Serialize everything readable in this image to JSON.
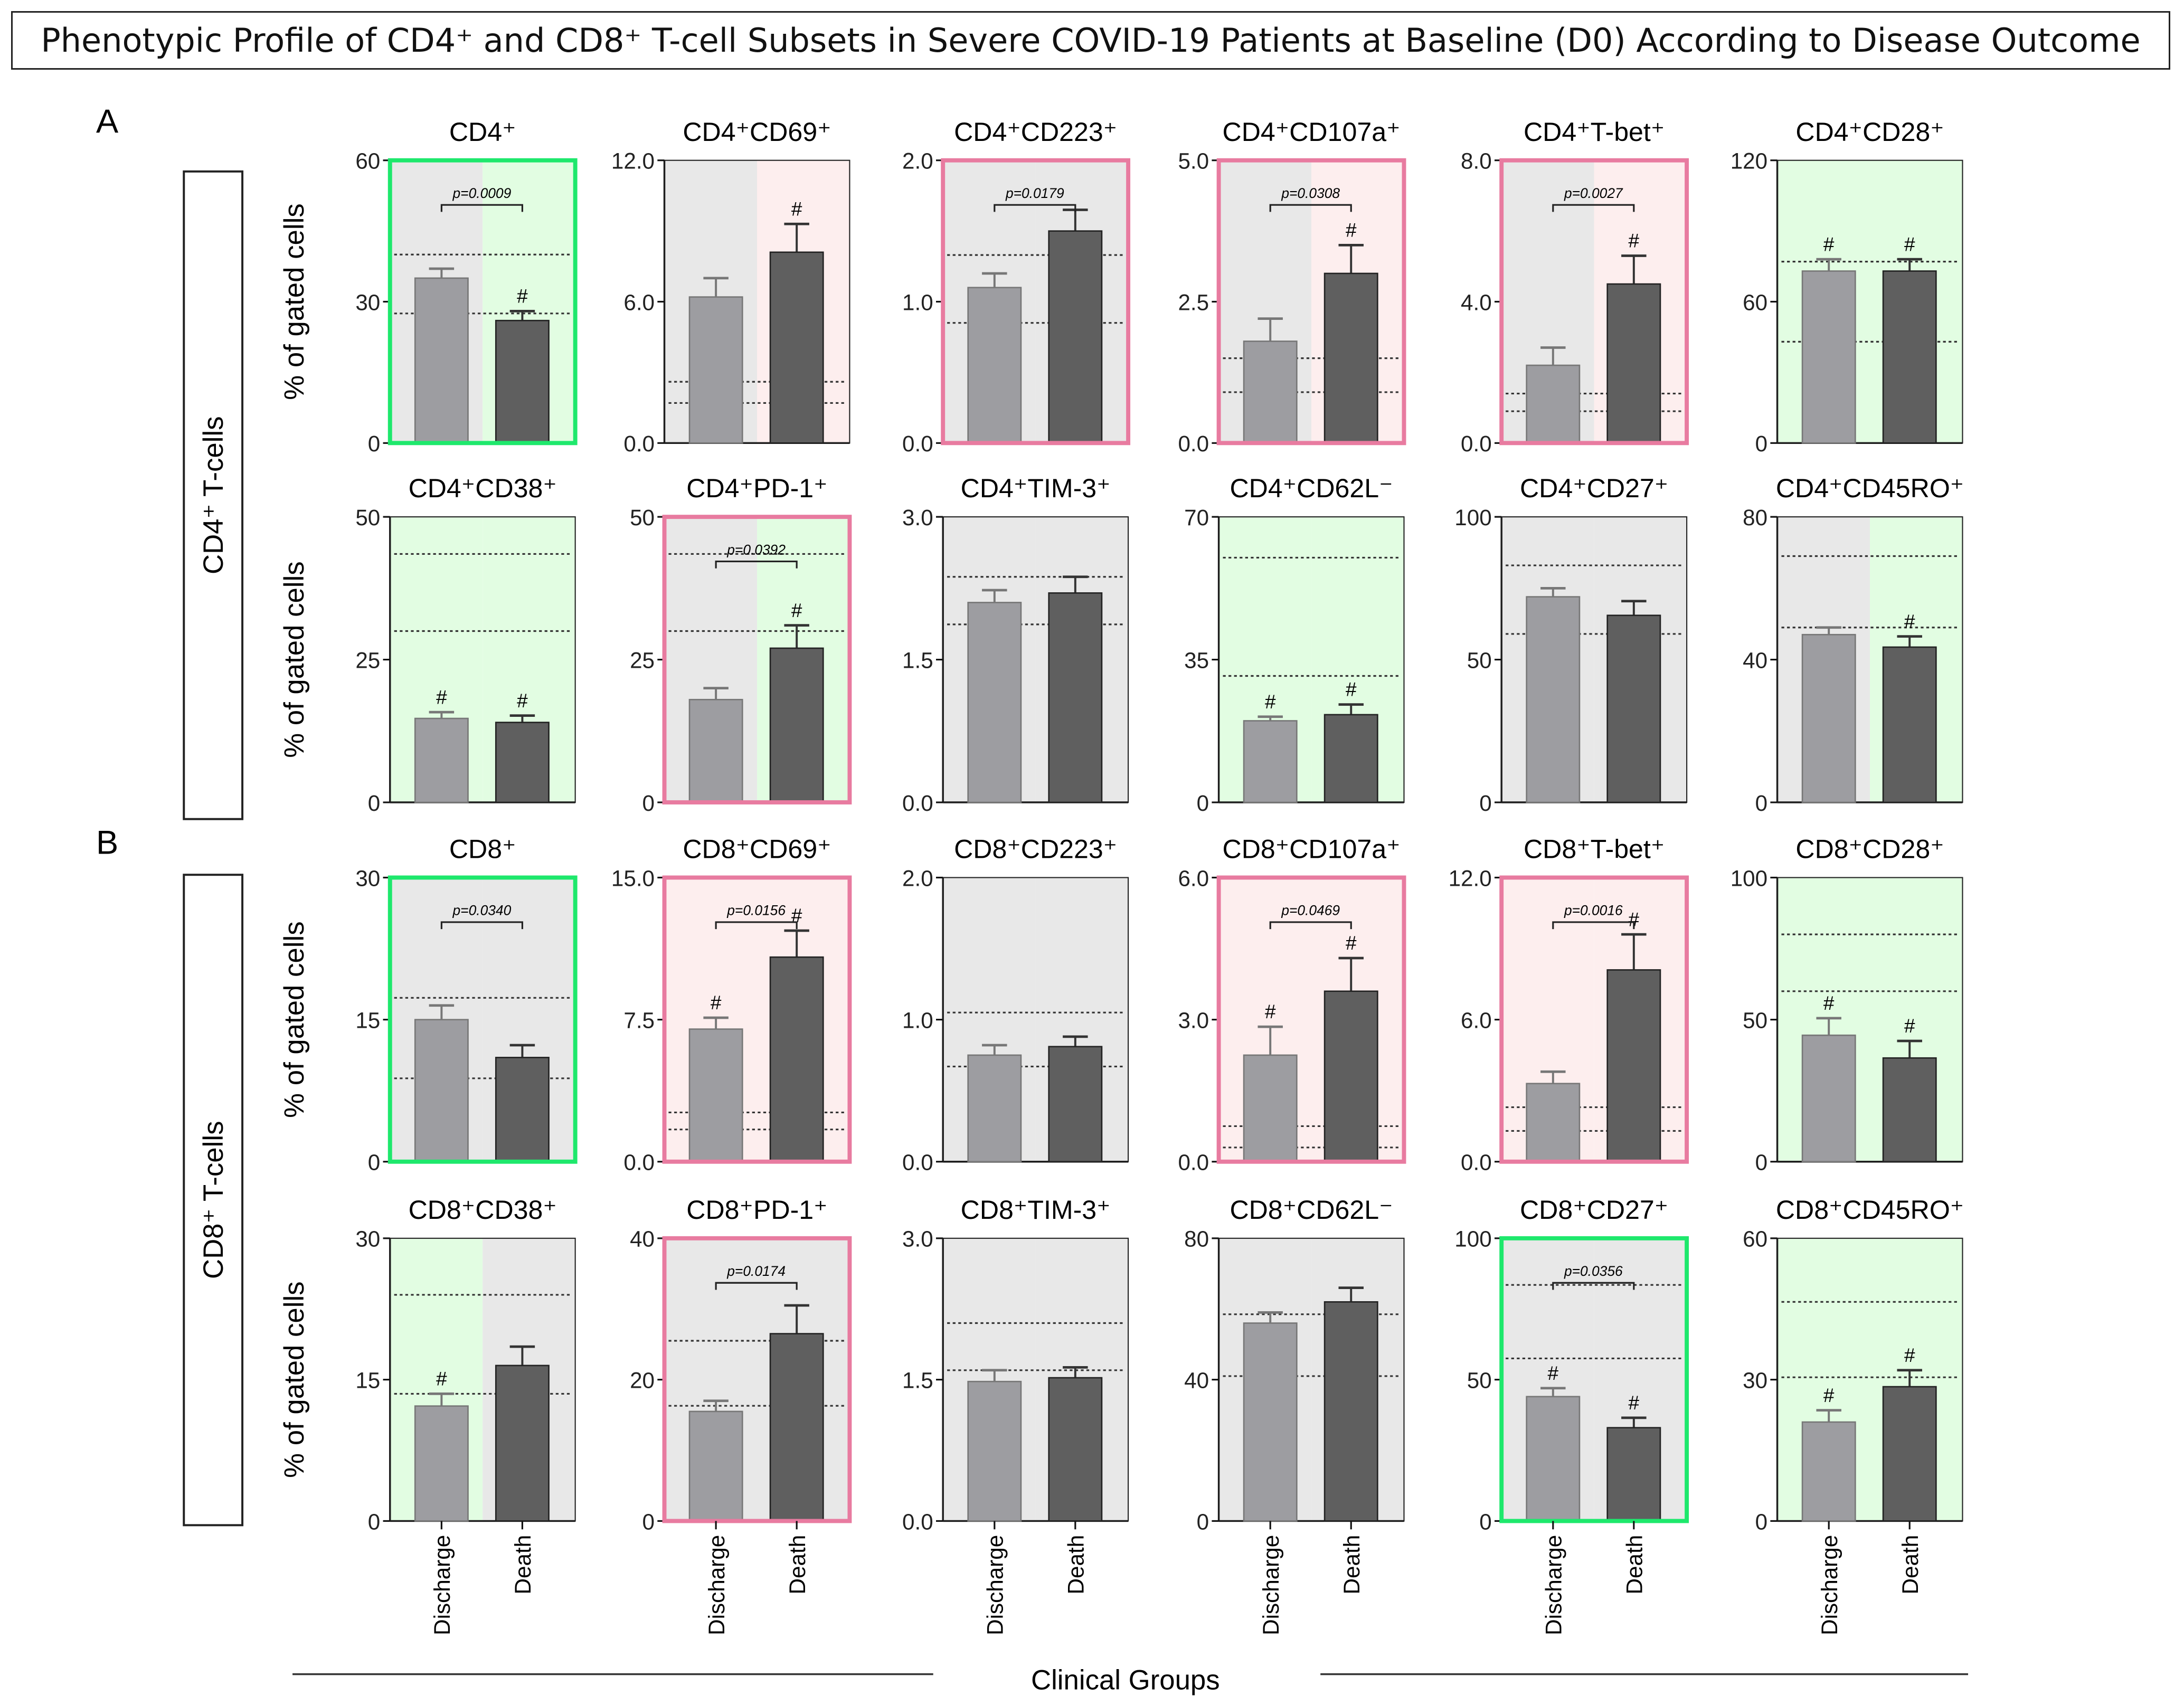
{
  "figure_title": "Phenotypic Profile of CD4⁺ and CD8⁺ T-cell Subsets in Severe COVID-19 Patients at Baseline (D0) According to Disease Outcome",
  "section_labels": [
    "A",
    "B"
  ],
  "row_group_labels": [
    "CD4⁺ T-cells",
    "CD8⁺ T-cells"
  ],
  "y_axis_label": "% of gated cells",
  "x_axis_title": "Clinical Groups",
  "colors": {
    "bg_grey": "#e8e8e8",
    "bg_green": "#e2fde2",
    "bg_pink": "#fdeeee",
    "bar_discharge": "#9d9da1",
    "bar_death": "#5f5f5f",
    "border_green": "#1ee86c",
    "border_pink": "#e87ba0"
  },
  "chart_data": {
    "type": "bar",
    "categories": [
      "Discharge",
      "Death"
    ],
    "panels": [
      {
        "title": "CD4⁺",
        "ymax": 60,
        "ticks": [
          "0",
          "30",
          "60"
        ],
        "values": [
          35,
          26
        ],
        "err": [
          37,
          28
        ],
        "ref": [
          40,
          27.5
        ],
        "bg": [
          "grey",
          "green"
        ],
        "border": "green",
        "p": "p=0.0009",
        "hash": [
          false,
          true
        ]
      },
      {
        "title": "CD4⁺CD69⁺",
        "ymax": 12,
        "ticks": [
          "0.0",
          "6.0",
          "12.0"
        ],
        "values": [
          6.2,
          8.1
        ],
        "err": [
          7.0,
          9.3
        ],
        "ref": [
          2.6,
          1.7
        ],
        "bg": [
          "grey",
          "pink"
        ],
        "border": null,
        "p": null,
        "hash": [
          false,
          true
        ]
      },
      {
        "title": "CD4⁺CD223⁺",
        "ymax": 2,
        "ticks": [
          "0.0",
          "1.0",
          "2.0"
        ],
        "values": [
          1.1,
          1.5
        ],
        "err": [
          1.2,
          1.65
        ],
        "ref": [
          1.33,
          0.85
        ],
        "bg": [
          "grey",
          "grey"
        ],
        "border": "pink",
        "p": "p=0.0179",
        "hash": [
          false,
          false
        ]
      },
      {
        "title": "CD4⁺CD107a⁺",
        "ymax": 5,
        "ticks": [
          "0.0",
          "2.5",
          "5.0"
        ],
        "values": [
          1.8,
          3.0
        ],
        "err": [
          2.2,
          3.5
        ],
        "ref": [
          1.5,
          0.9
        ],
        "bg": [
          "grey",
          "pink"
        ],
        "border": "pink",
        "p": "p=0.0308",
        "hash": [
          false,
          true
        ]
      },
      {
        "title": "CD4⁺T-bet⁺",
        "ymax": 8,
        "ticks": [
          "0.0",
          "4.0",
          "8.0"
        ],
        "values": [
          2.2,
          4.5
        ],
        "err": [
          2.7,
          5.3
        ],
        "ref": [
          1.4,
          0.9
        ],
        "bg": [
          "grey",
          "pink"
        ],
        "border": "pink",
        "p": "p=0.0027",
        "hash": [
          false,
          true
        ]
      },
      {
        "title": "CD4⁺CD28⁺",
        "ymax": 120,
        "ticks": [
          "0",
          "60",
          "120"
        ],
        "values": [
          73,
          73
        ],
        "err": [
          78,
          78
        ],
        "ref": [
          77,
          43
        ],
        "bg": [
          "green",
          "green"
        ],
        "border": null,
        "p": null,
        "hash": [
          true,
          true
        ]
      },
      {
        "title": "CD4⁺CD38⁺",
        "ymax": 50,
        "ticks": [
          "0",
          "25",
          "50"
        ],
        "values": [
          14.7,
          14
        ],
        "err": [
          15.8,
          15.2
        ],
        "ref": [
          43.5,
          30
        ],
        "bg": [
          "green",
          "green"
        ],
        "border": null,
        "p": null,
        "hash": [
          true,
          true
        ]
      },
      {
        "title": "CD4⁺PD-1⁺",
        "ymax": 50,
        "ticks": [
          "0",
          "25",
          "50"
        ],
        "values": [
          18,
          27
        ],
        "err": [
          20,
          31
        ],
        "ref": [
          43.5,
          30
        ],
        "bg": [
          "grey",
          "green"
        ],
        "border": "pink",
        "p": "p=0.0392",
        "hash": [
          false,
          true
        ]
      },
      {
        "title": "CD4⁺TIM-3⁺",
        "ymax": 3,
        "ticks": [
          "0.0",
          "1.5",
          "3.0"
        ],
        "values": [
          2.1,
          2.2
        ],
        "err": [
          2.23,
          2.37
        ],
        "ref": [
          2.37,
          1.87
        ],
        "bg": [
          "grey",
          "grey"
        ],
        "border": null,
        "p": null,
        "hash": [
          false,
          false
        ]
      },
      {
        "title": "CD4⁺CD62L⁻",
        "ymax": 70,
        "ticks": [
          "0",
          "35",
          "70"
        ],
        "values": [
          20,
          21.5
        ],
        "err": [
          21,
          24
        ],
        "ref": [
          60,
          31
        ],
        "bg": [
          "green",
          "green"
        ],
        "border": null,
        "p": null,
        "hash": [
          true,
          true
        ]
      },
      {
        "title": "CD4⁺CD27⁺",
        "ymax": 100,
        "ticks": [
          "0",
          "50",
          "100"
        ],
        "values": [
          72,
          65.5
        ],
        "err": [
          75,
          70.5
        ],
        "ref": [
          83,
          59
        ],
        "bg": [
          "grey",
          "grey"
        ],
        "border": null,
        "p": null,
        "hash": [
          false,
          false
        ]
      },
      {
        "title": "CD4⁺CD45RO⁺",
        "ymax": 80,
        "ticks": [
          "0",
          "40",
          "80"
        ],
        "values": [
          47,
          43.5
        ],
        "err": [
          49,
          46.5
        ],
        "ref": [
          69,
          49
        ],
        "bg": [
          "grey",
          "green"
        ],
        "border": null,
        "p": null,
        "hash": [
          false,
          true
        ]
      },
      {
        "title": "CD8⁺",
        "ymax": 30,
        "ticks": [
          "0",
          "15",
          "30"
        ],
        "values": [
          15,
          11
        ],
        "err": [
          16.5,
          12.3
        ],
        "ref": [
          17.3,
          8.8
        ],
        "bg": [
          "grey",
          "grey"
        ],
        "border": "green",
        "p": "p=0.0340",
        "hash": [
          false,
          false
        ]
      },
      {
        "title": "CD8⁺CD69⁺",
        "ymax": 15,
        "ticks": [
          "0.0",
          "7.5",
          "15.0"
        ],
        "values": [
          7.0,
          10.8
        ],
        "err": [
          7.6,
          12.2
        ],
        "ref": [
          2.6,
          1.7
        ],
        "bg": [
          "pink",
          "pink"
        ],
        "border": "pink",
        "p": "p=0.0156",
        "hash": [
          true,
          true
        ]
      },
      {
        "title": "CD8⁺CD223⁺",
        "ymax": 2,
        "ticks": [
          "0.0",
          "1.0",
          "2.0"
        ],
        "values": [
          0.75,
          0.81
        ],
        "err": [
          0.82,
          0.88
        ],
        "ref": [
          1.05,
          0.67
        ],
        "bg": [
          "grey",
          "grey"
        ],
        "border": null,
        "p": null,
        "hash": [
          false,
          false
        ]
      },
      {
        "title": "CD8⁺CD107a⁺",
        "ymax": 6,
        "ticks": [
          "0.0",
          "3.0",
          "6.0"
        ],
        "values": [
          2.25,
          3.6
        ],
        "err": [
          2.85,
          4.3
        ],
        "ref": [
          0.75,
          0.3
        ],
        "bg": [
          "pink",
          "pink"
        ],
        "border": "pink",
        "p": "p=0.0469",
        "hash": [
          true,
          true
        ]
      },
      {
        "title": "CD8⁺T-bet⁺",
        "ymax": 12,
        "ticks": [
          "0.0",
          "6.0",
          "12.0"
        ],
        "values": [
          3.3,
          8.1
        ],
        "err": [
          3.8,
          9.6
        ],
        "ref": [
          2.3,
          1.3
        ],
        "bg": [
          "pink",
          "pink"
        ],
        "border": "pink",
        "p": "p=0.0016",
        "hash": [
          false,
          true
        ]
      },
      {
        "title": "CD8⁺CD28⁺",
        "ymax": 100,
        "ticks": [
          "0",
          "50",
          "100"
        ],
        "values": [
          44.5,
          36.5
        ],
        "err": [
          50.5,
          42.5
        ],
        "ref": [
          80,
          60
        ],
        "bg": [
          "green",
          "green"
        ],
        "border": null,
        "p": null,
        "hash": [
          true,
          true
        ]
      },
      {
        "title": "CD8⁺CD38⁺",
        "ymax": 30,
        "ticks": [
          "0",
          "15",
          "30"
        ],
        "values": [
          12.2,
          16.5
        ],
        "err": [
          13.5,
          18.5
        ],
        "ref": [
          24,
          13.5
        ],
        "bg": [
          "green",
          "grey"
        ],
        "border": null,
        "p": null,
        "hash": [
          true,
          false
        ]
      },
      {
        "title": "CD8⁺PD-1⁺",
        "ymax": 40,
        "ticks": [
          "0",
          "20",
          "40"
        ],
        "values": [
          15.5,
          26.5
        ],
        "err": [
          17,
          30.5
        ],
        "ref": [
          25.5,
          16.3
        ],
        "bg": [
          "grey",
          "grey"
        ],
        "border": "pink",
        "p": "p=0.0174",
        "hash": [
          false,
          false
        ]
      },
      {
        "title": "CD8⁺TIM-3⁺",
        "ymax": 3,
        "ticks": [
          "0.0",
          "1.5",
          "3.0"
        ],
        "values": [
          1.48,
          1.52
        ],
        "err": [
          1.6,
          1.63
        ],
        "ref": [
          2.1,
          1.6
        ],
        "bg": [
          "grey",
          "grey"
        ],
        "border": null,
        "p": null,
        "hash": [
          false,
          false
        ]
      },
      {
        "title": "CD8⁺CD62L⁻",
        "ymax": 80,
        "ticks": [
          "0",
          "40",
          "80"
        ],
        "values": [
          56,
          62
        ],
        "err": [
          59,
          66
        ],
        "ref": [
          58.5,
          41
        ],
        "bg": [
          "grey",
          "grey"
        ],
        "border": null,
        "p": null,
        "hash": [
          false,
          false
        ]
      },
      {
        "title": "CD8⁺CD27⁺",
        "ymax": 100,
        "ticks": [
          "0",
          "50",
          "100"
        ],
        "values": [
          44,
          33
        ],
        "err": [
          47,
          36.5
        ],
        "ref": [
          83.5,
          57.5
        ],
        "bg": [
          "grey",
          "grey"
        ],
        "border": "green",
        "p": "p=0.0356",
        "hash": [
          true,
          true
        ]
      },
      {
        "title": "CD8⁺CD45RO⁺",
        "ymax": 60,
        "ticks": [
          "0",
          "30",
          "60"
        ],
        "values": [
          21,
          28.5
        ],
        "err": [
          23.5,
          32
        ],
        "ref": [
          46.5,
          30.5
        ],
        "bg": [
          "green",
          "green"
        ],
        "border": null,
        "p": null,
        "hash": [
          true,
          true
        ]
      }
    ],
    "hash_symbol": "#"
  }
}
